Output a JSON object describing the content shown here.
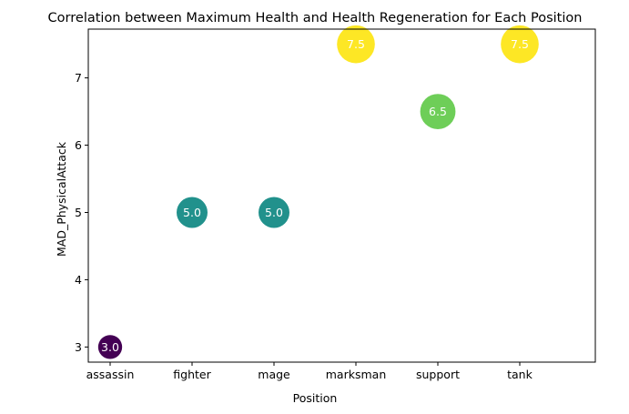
{
  "chart_data": {
    "type": "scatter",
    "title": "Correlation between Maximum Health and Health Regeneration for Each Position",
    "xlabel": "Position",
    "ylabel": "MAD_PhysicalAttack",
    "categories": [
      "assassin",
      "fighter",
      "mage",
      "marksman",
      "support",
      "tank"
    ],
    "values": [
      3.0,
      5.0,
      5.0,
      7.5,
      6.5,
      7.5
    ],
    "labels": [
      "3.0",
      "5.0",
      "5.0",
      "7.5",
      "6.5",
      "7.5"
    ],
    "colors": [
      "#440154",
      "#21918c",
      "#21918c",
      "#fde725",
      "#6ece58",
      "#fde725"
    ],
    "ylim": [
      2.775,
      7.725
    ],
    "yticks": [
      3,
      4,
      5,
      6,
      7
    ],
    "ytick_labels": [
      "3",
      "4",
      "5",
      "6",
      "7"
    ],
    "grid": false,
    "marker_size_by_value": true
  }
}
